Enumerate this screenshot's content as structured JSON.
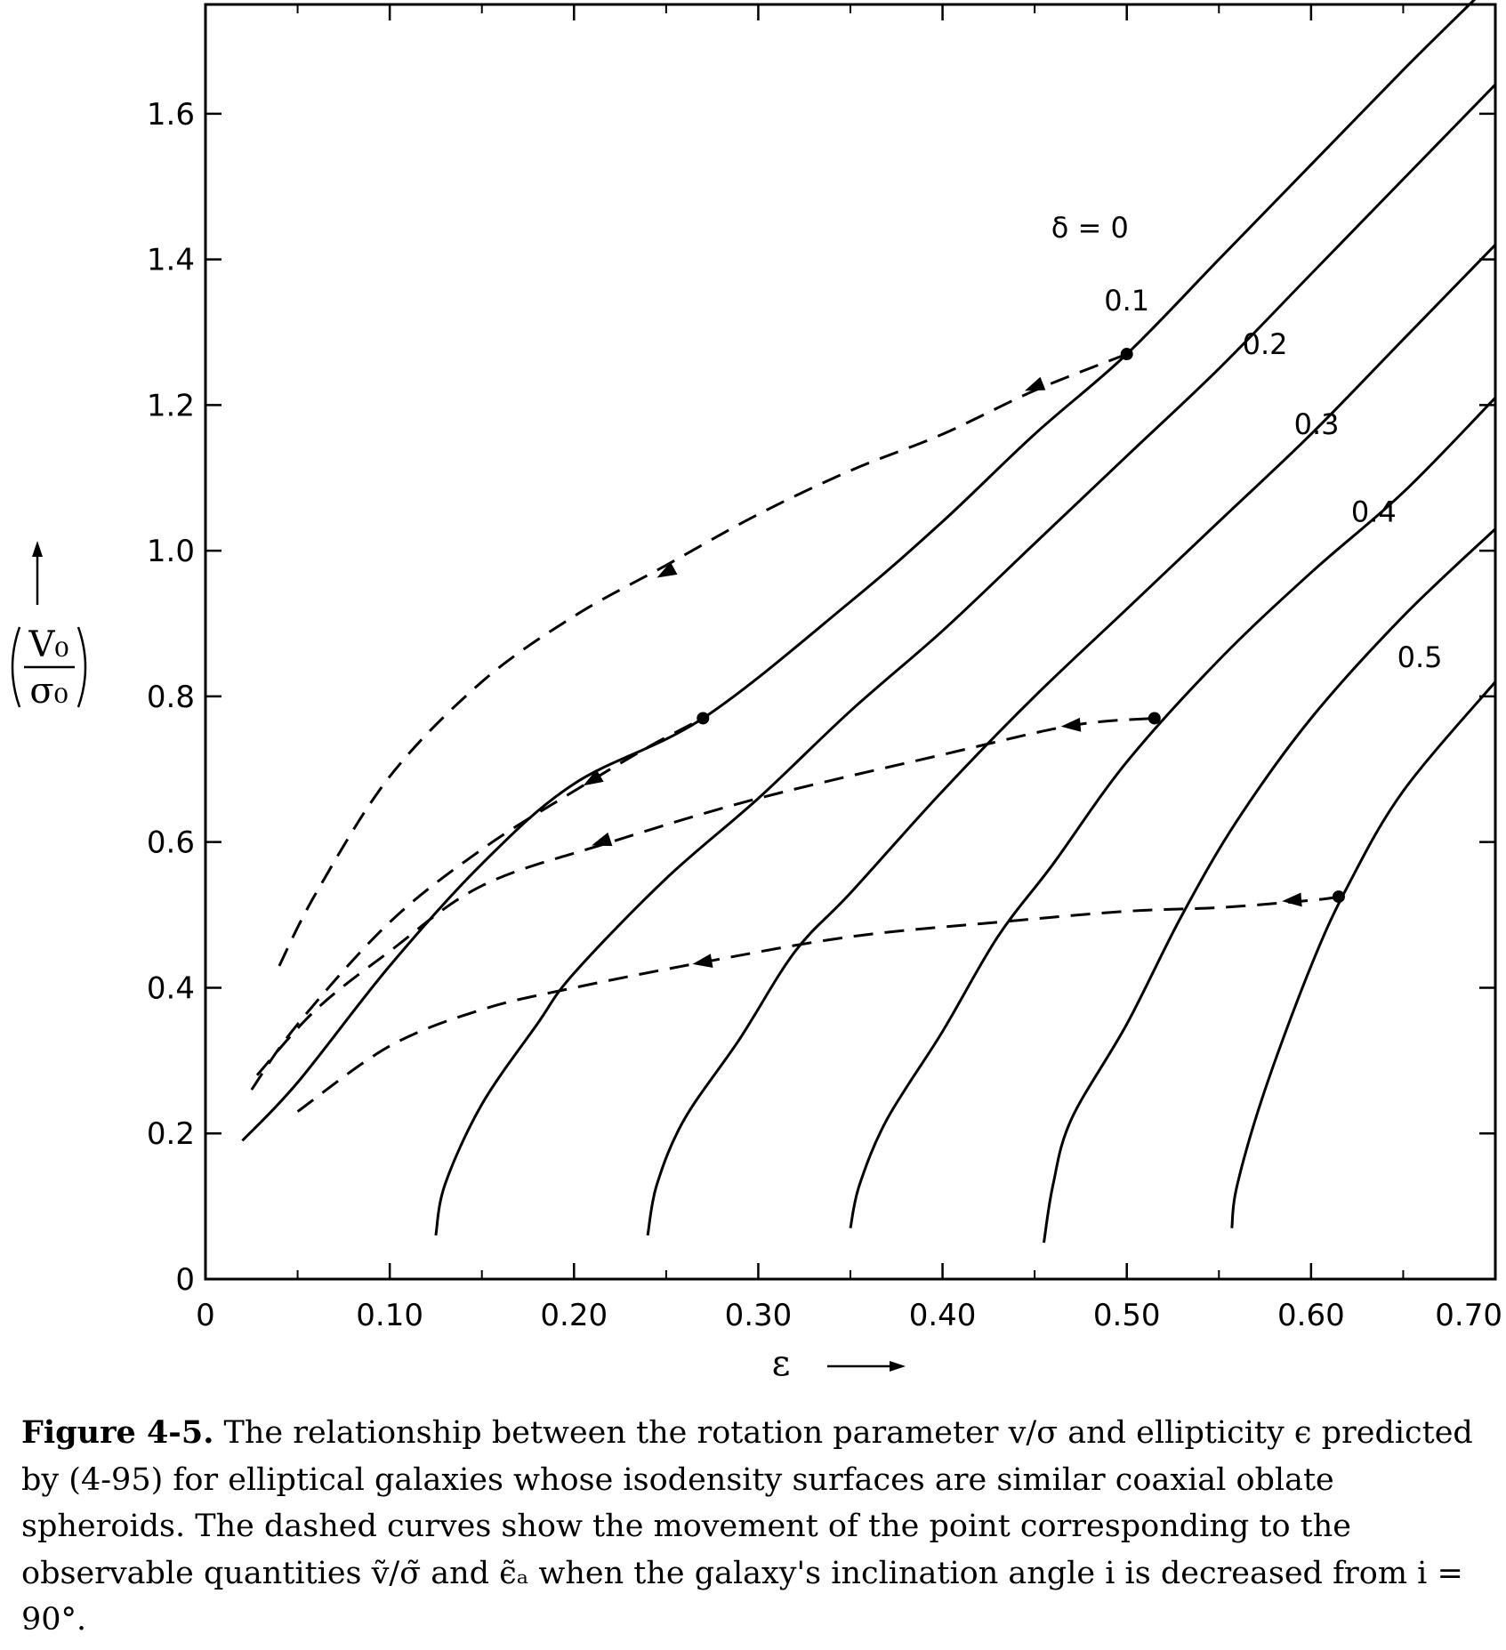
{
  "chart_data": {
    "type": "line",
    "xlabel": "ε",
    "ylabel_numerator": "V₀",
    "ylabel_denominator": "σ₀",
    "xlim": [
      0,
      0.7
    ],
    "ylim": [
      0,
      1.75
    ],
    "x_ticks": [
      {
        "value": 0,
        "label": "0"
      },
      {
        "value": 0.1,
        "label": "0.10"
      },
      {
        "value": 0.2,
        "label": "0.20"
      },
      {
        "value": 0.3,
        "label": "0.30"
      },
      {
        "value": 0.4,
        "label": "0.40"
      },
      {
        "value": 0.5,
        "label": "0.50"
      },
      {
        "value": 0.6,
        "label": "0.60"
      },
      {
        "value": 0.7,
        "label": "0.70"
      }
    ],
    "x_minor_ticks": [
      0.05,
      0.15,
      0.25,
      0.35,
      0.45,
      0.55,
      0.65
    ],
    "y_ticks": [
      {
        "value": 0,
        "label": "0"
      },
      {
        "value": 0.2,
        "label": "0.2"
      },
      {
        "value": 0.4,
        "label": "0.4"
      },
      {
        "value": 0.6,
        "label": "0.6"
      },
      {
        "value": 0.8,
        "label": "0.8"
      },
      {
        "value": 1.0,
        "label": "1.0"
      },
      {
        "value": 1.2,
        "label": "1.2"
      },
      {
        "value": 1.4,
        "label": "1.4"
      },
      {
        "value": 1.6,
        "label": "1.6"
      }
    ],
    "grid": false,
    "solid_series": [
      {
        "name": "δ = 0",
        "label_at": [
          0.48,
          1.43
        ],
        "points": [
          [
            0.02,
            0.19
          ],
          [
            0.05,
            0.27
          ],
          [
            0.1,
            0.43
          ],
          [
            0.15,
            0.57
          ],
          [
            0.2,
            0.68
          ],
          [
            0.27,
            0.77
          ],
          [
            0.35,
            0.93
          ],
          [
            0.4,
            1.04
          ],
          [
            0.45,
            1.16
          ],
          [
            0.5,
            1.27
          ],
          [
            0.55,
            1.4
          ],
          [
            0.6,
            1.53
          ],
          [
            0.65,
            1.66
          ],
          [
            0.69,
            1.76
          ]
        ]
      },
      {
        "name": "0.1",
        "label_at": [
          0.5,
          1.33
        ],
        "points": [
          [
            0.125,
            0.06
          ],
          [
            0.13,
            0.13
          ],
          [
            0.15,
            0.24
          ],
          [
            0.18,
            0.35
          ],
          [
            0.2,
            0.42
          ],
          [
            0.25,
            0.55
          ],
          [
            0.3,
            0.66
          ],
          [
            0.35,
            0.78
          ],
          [
            0.4,
            0.89
          ],
          [
            0.45,
            1.01
          ],
          [
            0.5,
            1.13
          ],
          [
            0.55,
            1.25
          ],
          [
            0.6,
            1.38
          ],
          [
            0.65,
            1.51
          ],
          [
            0.7,
            1.64
          ]
        ]
      },
      {
        "name": "0.2",
        "label_at": [
          0.575,
          1.27
        ],
        "points": [
          [
            0.24,
            0.06
          ],
          [
            0.245,
            0.13
          ],
          [
            0.26,
            0.22
          ],
          [
            0.29,
            0.33
          ],
          [
            0.32,
            0.45
          ],
          [
            0.35,
            0.53
          ],
          [
            0.4,
            0.67
          ],
          [
            0.45,
            0.8
          ],
          [
            0.5,
            0.92
          ],
          [
            0.55,
            1.04
          ],
          [
            0.6,
            1.16
          ],
          [
            0.65,
            1.29
          ],
          [
            0.7,
            1.42
          ]
        ]
      },
      {
        "name": "0.3",
        "label_at": [
          0.603,
          1.16
        ],
        "points": [
          [
            0.35,
            0.07
          ],
          [
            0.355,
            0.13
          ],
          [
            0.37,
            0.22
          ],
          [
            0.4,
            0.34
          ],
          [
            0.43,
            0.47
          ],
          [
            0.46,
            0.57
          ],
          [
            0.5,
            0.71
          ],
          [
            0.55,
            0.85
          ],
          [
            0.6,
            0.97
          ],
          [
            0.65,
            1.08
          ],
          [
            0.7,
            1.21
          ]
        ]
      },
      {
        "name": "0.4",
        "label_at": [
          0.634,
          1.04
        ],
        "points": [
          [
            0.455,
            0.05
          ],
          [
            0.46,
            0.13
          ],
          [
            0.47,
            0.22
          ],
          [
            0.5,
            0.35
          ],
          [
            0.53,
            0.5
          ],
          [
            0.56,
            0.63
          ],
          [
            0.6,
            0.77
          ],
          [
            0.65,
            0.91
          ],
          [
            0.7,
            1.03
          ]
        ]
      },
      {
        "name": "0.5",
        "label_at": [
          0.659,
          0.84
        ],
        "points": [
          [
            0.557,
            0.07
          ],
          [
            0.56,
            0.13
          ],
          [
            0.575,
            0.26
          ],
          [
            0.6,
            0.43
          ],
          [
            0.62,
            0.54
          ],
          [
            0.65,
            0.67
          ],
          [
            0.7,
            0.82
          ]
        ]
      }
    ],
    "dashed_series": [
      {
        "points": [
          [
            0.04,
            0.43
          ],
          [
            0.06,
            0.53
          ],
          [
            0.1,
            0.69
          ],
          [
            0.15,
            0.82
          ],
          [
            0.2,
            0.91
          ],
          [
            0.25,
            0.98
          ],
          [
            0.3,
            1.05
          ],
          [
            0.35,
            1.11
          ],
          [
            0.4,
            1.16
          ],
          [
            0.45,
            1.22
          ],
          [
            0.5,
            1.27
          ]
        ],
        "arrows_at": [
          [
            0.45,
            1.225
          ],
          [
            0.25,
            0.97
          ]
        ],
        "start_dot": [
          0.5,
          1.27
        ]
      },
      {
        "points": [
          [
            0.025,
            0.26
          ],
          [
            0.05,
            0.35
          ],
          [
            0.1,
            0.49
          ],
          [
            0.15,
            0.59
          ],
          [
            0.2,
            0.67
          ],
          [
            0.24,
            0.73
          ],
          [
            0.27,
            0.77
          ]
        ],
        "arrows_at": [
          [
            0.21,
            0.685
          ]
        ],
        "start_dot": [
          0.27,
          0.77
        ]
      },
      {
        "points": [
          [
            0.028,
            0.28
          ],
          [
            0.06,
            0.37
          ],
          [
            0.1,
            0.45
          ],
          [
            0.15,
            0.54
          ],
          [
            0.22,
            0.6
          ],
          [
            0.3,
            0.66
          ],
          [
            0.4,
            0.72
          ],
          [
            0.47,
            0.76
          ],
          [
            0.515,
            0.77
          ]
        ],
        "arrows_at": [
          [
            0.47,
            0.76
          ],
          [
            0.215,
            0.6
          ]
        ],
        "start_dot": [
          0.515,
          0.77
        ]
      },
      {
        "points": [
          [
            0.05,
            0.23
          ],
          [
            0.1,
            0.32
          ],
          [
            0.15,
            0.37
          ],
          [
            0.2,
            0.4
          ],
          [
            0.27,
            0.435
          ],
          [
            0.35,
            0.47
          ],
          [
            0.43,
            0.49
          ],
          [
            0.5,
            0.505
          ],
          [
            0.55,
            0.51
          ],
          [
            0.6,
            0.52
          ],
          [
            0.615,
            0.525
          ]
        ],
        "arrows_at": [
          [
            0.59,
            0.52
          ],
          [
            0.27,
            0.435
          ]
        ],
        "start_dot": [
          0.615,
          0.525
        ]
      }
    ]
  },
  "caption": {
    "figure_number": "Figure 4-5.",
    "text": " The relationship between the rotation parameter v/σ and ellipticity ϵ predicted by (4-95) for elliptical galaxies whose isodensity surfaces are similar coaxial oblate spheroids. The dashed curves show the movement of the point corresponding to the observable quantities ṽ/σ̃ and ϵ̃ₐ when the galaxy's inclination angle i is decreased from i = 90°."
  }
}
